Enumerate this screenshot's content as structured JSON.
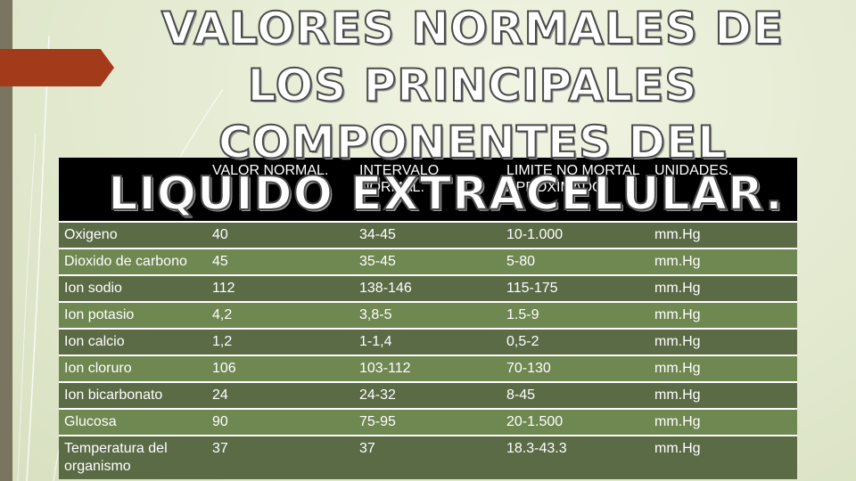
{
  "slide": {
    "title_lines": [
      "VALORES NORMALES DE",
      "LOS PRINCIPALES",
      "COMPONENTES DEL",
      "LIQUIDO EXTRACELULAR."
    ]
  },
  "table": {
    "headers": [
      "",
      "VALOR NORMAL.",
      "INTERVALO NORMAL.",
      "LIMITE NO MORTAL APROXIMADO.",
      "UNIDADES."
    ],
    "rows": [
      [
        "Oxigeno",
        "40",
        "34-45",
        "10-1.000",
        "mm.Hg"
      ],
      [
        "Dioxido de carbono",
        "45",
        "35-45",
        "5-80",
        "mm.Hg"
      ],
      [
        "Ion sodio",
        "112",
        "138-146",
        "115-175",
        "mm.Hg"
      ],
      [
        "Ion potasio",
        "4,2",
        "3,8-5",
        "1.5-9",
        "mm.Hg"
      ],
      [
        "Ion calcio",
        "1,2",
        "1-1,4",
        "0,5-2",
        "mm.Hg"
      ],
      [
        "Ion cloruro",
        "106",
        "103-112",
        "70-130",
        "mm.Hg"
      ],
      [
        "Ion bicarbonato",
        "24",
        "24-32",
        "8-45",
        "mm.Hg"
      ],
      [
        "Glucosa",
        "90",
        "75-95",
        "20-1.500",
        "mm.Hg"
      ],
      [
        "Temperatura del organismo",
        "37",
        "37",
        "18.3-43.3",
        "mm.Hg"
      ]
    ]
  },
  "colors": {
    "header_bg": "#000000",
    "row_dark": "#5b6b46",
    "row_light": "#6f8751",
    "arrow": "#a33a1a",
    "left_bar": "#7a7560"
  }
}
